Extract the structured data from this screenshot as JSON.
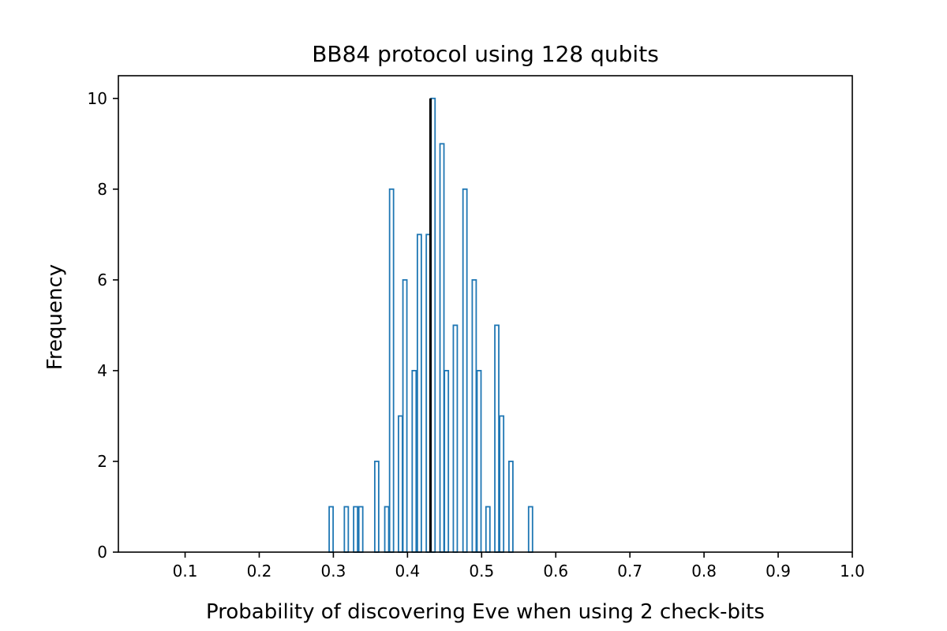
{
  "chart_data": {
    "type": "bar",
    "title": "BB84 protocol using 128 qubits",
    "xlabel": "Probability of discovering Eve when using 2 check-bits",
    "ylabel": "Frequency",
    "xlim": [
      0.01,
      1.0
    ],
    "ylim": [
      0,
      10.5
    ],
    "xticks": [
      "0.1",
      "0.2",
      "0.3",
      "0.4",
      "0.5",
      "0.6",
      "0.7",
      "0.8",
      "0.9",
      "1.0"
    ],
    "yticks": [
      "0",
      "2",
      "4",
      "6",
      "8",
      "10"
    ],
    "bar_color": "#1f77b4",
    "bars": [
      {
        "x": 0.297,
        "count": 1
      },
      {
        "x": 0.3175,
        "count": 1
      },
      {
        "x": 0.33,
        "count": 1
      },
      {
        "x": 0.337,
        "count": 1
      },
      {
        "x": 0.3585,
        "count": 2
      },
      {
        "x": 0.372,
        "count": 1
      },
      {
        "x": 0.3785,
        "count": 8
      },
      {
        "x": 0.3905,
        "count": 3
      },
      {
        "x": 0.3965,
        "count": 6
      },
      {
        "x": 0.409,
        "count": 4
      },
      {
        "x": 0.416,
        "count": 7
      },
      {
        "x": 0.428,
        "count": 7
      },
      {
        "x": 0.4345,
        "count": 10
      },
      {
        "x": 0.4465,
        "count": 9
      },
      {
        "x": 0.4525,
        "count": 4
      },
      {
        "x": 0.4645,
        "count": 5
      },
      {
        "x": 0.4775,
        "count": 8
      },
      {
        "x": 0.49,
        "count": 6
      },
      {
        "x": 0.4965,
        "count": 4
      },
      {
        "x": 0.5085,
        "count": 1
      },
      {
        "x": 0.5205,
        "count": 5
      },
      {
        "x": 0.527,
        "count": 3
      },
      {
        "x": 0.5395,
        "count": 2
      },
      {
        "x": 0.566,
        "count": 1
      }
    ],
    "mean_line": {
      "x": 0.431,
      "y_top": 10,
      "color": "#000000"
    }
  }
}
